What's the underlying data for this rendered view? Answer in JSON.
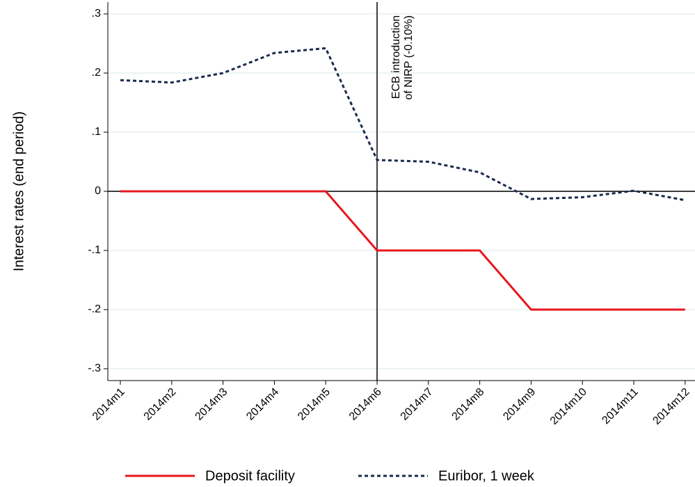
{
  "chart_data": {
    "type": "line",
    "y_label": "Interest rates (end period)",
    "categories": [
      "2014m1",
      "2014m2",
      "2014m3",
      "2014m4",
      "2014m5",
      "2014m6",
      "2014m7",
      "2014m8",
      "2014m9",
      "2014m10",
      "2014m11",
      "2014m12"
    ],
    "series": [
      {
        "name": "Deposit facility",
        "color": "#e8161b",
        "dash": false,
        "values": [
          0,
          0,
          0,
          0,
          0,
          -0.1,
          -0.1,
          -0.1,
          -0.2,
          -0.2,
          -0.2,
          -0.2
        ]
      },
      {
        "name": "Euribor, 1 week",
        "color": "#1a2a4a",
        "dash": true,
        "values": [
          0.188,
          0.184,
          0.2,
          0.234,
          0.242,
          0.053,
          0.05,
          0.032,
          -0.013,
          -0.01,
          0.001,
          -0.015
        ]
      }
    ],
    "ylim": [
      -0.32,
      0.32
    ],
    "yticks": [
      {
        "value": -0.3,
        "label": "-.3"
      },
      {
        "value": -0.2,
        "label": "-.2"
      },
      {
        "value": -0.1,
        "label": "-.1"
      },
      0,
      {
        "value": 0.1,
        "label": ".1"
      },
      {
        "value": 0.2,
        "label": ".2"
      },
      {
        "value": 0.3,
        "label": ".3"
      }
    ],
    "grid": true,
    "zero_line": true,
    "vline": "2014m6",
    "annotation": [
      "ECB introduction",
      "of NIRP (-0.10%)"
    ],
    "legend": "bottom"
  }
}
